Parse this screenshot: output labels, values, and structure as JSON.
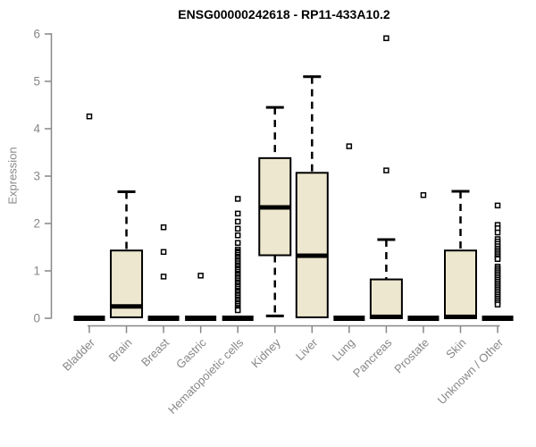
{
  "colors": {
    "box_fill": "#ede7cf",
    "box_stroke": "#000000",
    "median": "#000000",
    "axis": "#878787",
    "title": "#000000",
    "background": "#ffffff"
  },
  "chart_data": {
    "type": "boxplot",
    "title": "ENSG00000242618 - RP11-433A10.2",
    "ylabel": "Expression",
    "xlabel": "",
    "ylim": [
      0,
      6
    ],
    "yticks": [
      0,
      1,
      2,
      3,
      4,
      5,
      6
    ],
    "grid": false,
    "legend": false,
    "categories": [
      "Bladder",
      "Brain",
      "Breast",
      "Gastric",
      "Hematopoietic cells",
      "Kidney",
      "Liver",
      "Lung",
      "Pancreas",
      "Prostate",
      "Skin",
      "Unknown / Other"
    ],
    "series": [
      {
        "name": "Bladder",
        "low": 0,
        "q1": 0,
        "median": 0,
        "q3": 0,
        "high": 0,
        "outliers": [
          4.26
        ]
      },
      {
        "name": "Brain",
        "low": 0.02,
        "q1": 0.02,
        "median": 0.25,
        "q3": 1.43,
        "high": 2.67,
        "outliers": []
      },
      {
        "name": "Breast",
        "low": 0,
        "q1": 0,
        "median": 0,
        "q3": 0,
        "high": 0,
        "outliers": [
          1.92,
          1.4,
          0.88
        ]
      },
      {
        "name": "Gastric",
        "low": 0,
        "q1": 0,
        "median": 0,
        "q3": 0,
        "high": 0,
        "outliers": [
          0.9
        ]
      },
      {
        "name": "Hematopoietic cells",
        "low": 0,
        "q1": 0,
        "median": 0,
        "q3": 0,
        "high": 0,
        "outliers": [
          2.52,
          2.21,
          2.04,
          1.89,
          1.75,
          1.59,
          1.45,
          1.41,
          1.38,
          1.34,
          1.3,
          1.27,
          1.23,
          1.2,
          1.16,
          1.12,
          1.09,
          1.05,
          1.02,
          0.98,
          0.94,
          0.91,
          0.87,
          0.84,
          0.8,
          0.76,
          0.73,
          0.69,
          0.66,
          0.62,
          0.58,
          0.55,
          0.51,
          0.48,
          0.44,
          0.4,
          0.37,
          0.33,
          0.3,
          0.26,
          0.22,
          0.19,
          0.17
        ]
      },
      {
        "name": "Kidney",
        "low": 0.05,
        "q1": 1.33,
        "median": 2.34,
        "q3": 3.38,
        "high": 4.45,
        "outliers": []
      },
      {
        "name": "Liver",
        "low": 0.02,
        "q1": 0.02,
        "median": 1.32,
        "q3": 3.07,
        "high": 5.1,
        "outliers": []
      },
      {
        "name": "Lung",
        "low": 0,
        "q1": 0,
        "median": 0,
        "q3": 0,
        "high": 0,
        "outliers": [
          3.63
        ]
      },
      {
        "name": "Pancreas",
        "low": 0,
        "q1": 0,
        "median": 0.03,
        "q3": 0.82,
        "high": 1.66,
        "outliers": [
          3.12,
          5.91
        ]
      },
      {
        "name": "Prostate",
        "low": 0,
        "q1": 0,
        "median": 0,
        "q3": 0,
        "high": 0,
        "outliers": [
          2.6
        ]
      },
      {
        "name": "Skin",
        "low": 0,
        "q1": 0,
        "median": 0.03,
        "q3": 1.43,
        "high": 2.68,
        "outliers": []
      },
      {
        "name": "Unknown / Other",
        "low": 0,
        "q1": 0,
        "median": 0,
        "q3": 0,
        "high": 0,
        "outliers": [
          2.38,
          1.97,
          1.9,
          1.81,
          1.67,
          1.62,
          1.57,
          1.52,
          1.47,
          1.43,
          1.39,
          1.35,
          1.31,
          1.27,
          1.25,
          1.09,
          1.05,
          1.01,
          0.97,
          0.93,
          0.89,
          0.85,
          0.81,
          0.77,
          0.73,
          0.69,
          0.65,
          0.61,
          0.57,
          0.53,
          0.49,
          0.45,
          0.41,
          0.37,
          0.33,
          0.29
        ]
      }
    ]
  }
}
